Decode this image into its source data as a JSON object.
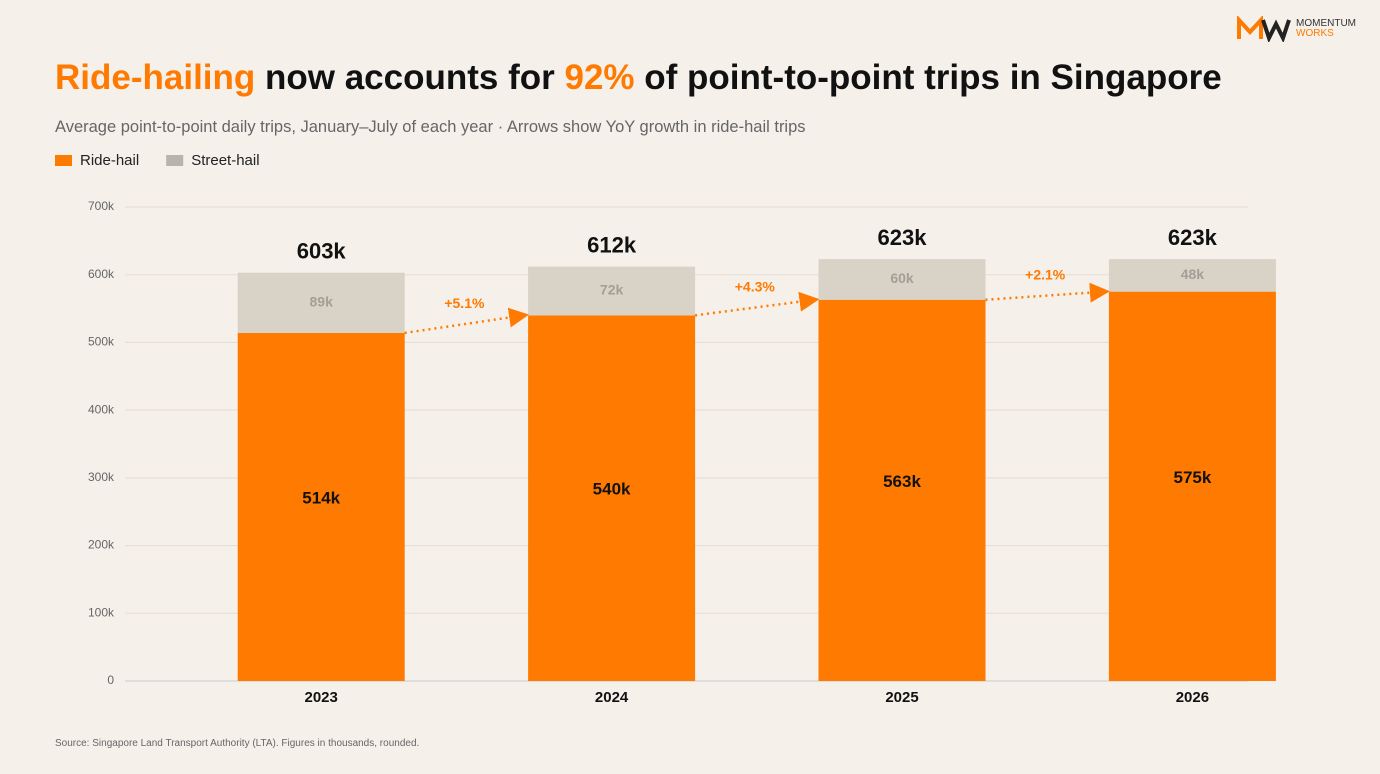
{
  "chart_data": {
    "type": "stacked_bar",
    "title": [
      "Ride-hailing",
      " now accounts for ",
      "92%",
      " of point-to-point trips in Singapore"
    ],
    "subtitle": "Average point-to-point daily trips, January–July of each year · Arrows show YoY growth in ride-hail trips",
    "source": "Source: Singapore Land Transport Authority (LTA). Figures in thousands, rounded.",
    "logo": [
      "MOMENTUM",
      "WORKS"
    ],
    "categories": [
      "2023",
      "2024",
      "2025",
      "2026"
    ],
    "series": [
      {
        "name": "Ride-hail",
        "color": "#ff7a00",
        "values": [
          514000,
          540000,
          563000,
          575000
        ],
        "value_labels": [
          "514k",
          "540k",
          "563k",
          "575k"
        ]
      },
      {
        "name": "Street-hail",
        "color": "#d9d2c7",
        "values": [
          89000,
          72000,
          60000,
          48000
        ],
        "value_labels": [
          "89k",
          "72k",
          "60k",
          "48k"
        ]
      }
    ],
    "totals": [
      603000,
      612000,
      623000,
      623000
    ],
    "total_labels": [
      "603k",
      "612k",
      "623k",
      "623k"
    ],
    "growth_labels": [
      "+5.1%",
      "+4.3%",
      "+2.1%"
    ],
    "ylim": [
      0,
      700000
    ],
    "yticks": [
      0,
      {
        "value": 100000,
        "label": "100k"
      },
      {
        "value": 200000,
        "label": "200k"
      },
      {
        "value": 300000,
        "label": "300k"
      },
      {
        "value": 400000,
        "label": "400k"
      },
      {
        "value": 500000,
        "label": "500k"
      },
      {
        "value": 600000,
        "label": "600k"
      },
      {
        "value": 700000,
        "label": "700k"
      }
    ],
    "grid": true,
    "legend": "top-left"
  }
}
